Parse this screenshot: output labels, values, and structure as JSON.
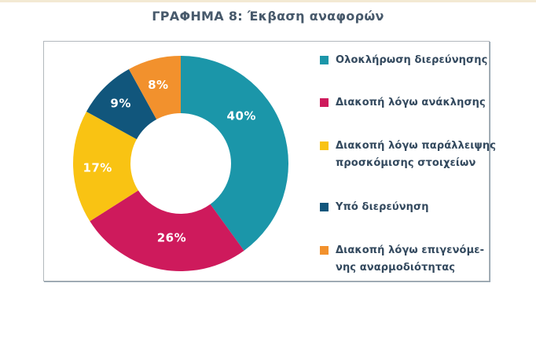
{
  "page": {
    "accent_strip_color": "#F3E9D3"
  },
  "chart_data": {
    "type": "donut",
    "title": "ΓΡΑΦΗΜΑ 8: Έκβαση αναφορών",
    "value_suffix": "%",
    "direction": "clockwise",
    "start_angle_deg": 0,
    "legend_position": "right",
    "total": 100,
    "slices": [
      {
        "label": "Ολοκλήρωση διερεύνησης",
        "legend_lines": [
          "Ολοκλήρωση διερεύνησης"
        ],
        "value": 40,
        "display_value": "40%",
        "color": "#1B96A9"
      },
      {
        "label": "Διακοπή λόγω ανάκλησης",
        "legend_lines": [
          "Διακοπή λόγω ανάκλησης"
        ],
        "value": 26,
        "display_value": "26%",
        "color": "#CE1A5C"
      },
      {
        "label": "Διακοπή λόγω παράλλειψης προσκόμισης στοιχείων",
        "legend_lines": [
          "Διακοπή λόγω παράλλειψης",
          "προσκόμισης στοιχείων"
        ],
        "value": 17,
        "display_value": "17%",
        "color": "#F9C313"
      },
      {
        "label": "Υπό διερεύνηση",
        "legend_lines": [
          "Υπό διερεύνηση"
        ],
        "value": 9,
        "display_value": "9%",
        "color": "#11567C"
      },
      {
        "label": "Διακοπή λόγω επιγενόμενης αναρμοδιότητας",
        "legend_lines": [
          "Διακοπή λόγω επιγενόμε-",
          "νης αναρμοδιότητας"
        ],
        "value": 8,
        "display_value": "8%",
        "color": "#F2912D"
      }
    ],
    "layout": {
      "center": [
        174,
        155
      ],
      "outer_radius": 137,
      "inner_radius": 64,
      "label_angles_deg": [
        52,
        187,
        267,
        315,
        344
      ],
      "label_radii": [
        98,
        95,
        106,
        108,
        104
      ],
      "legend_item_tops": [
        13,
        67,
        122,
        200,
        255
      ]
    }
  }
}
